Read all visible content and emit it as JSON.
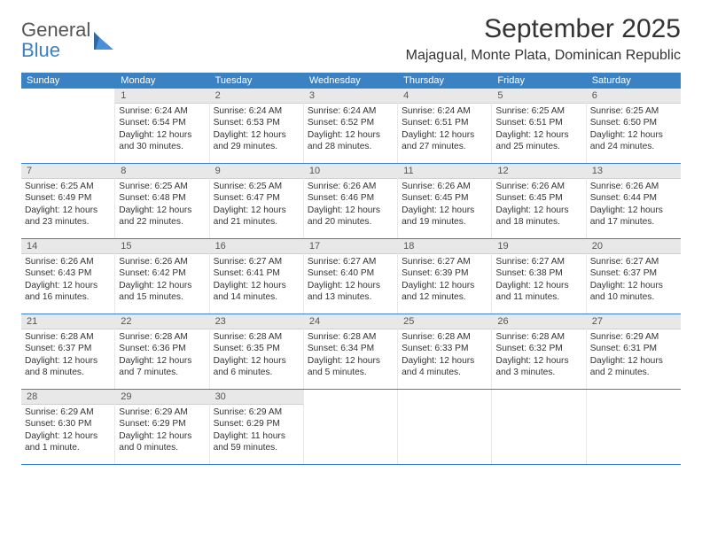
{
  "brand": {
    "name_part1": "General",
    "name_part2": "Blue",
    "shape_color": "#2f6aa8"
  },
  "month_title": "September 2025",
  "location": "Majagual, Monte Plata, Dominican Republic",
  "colors": {
    "header_bg": "#3b82c4",
    "header_text": "#ffffff",
    "daynum_bg": "#e8e8e8",
    "border": "#3b82c4",
    "text": "#333333"
  },
  "weekdays": [
    "Sunday",
    "Monday",
    "Tuesday",
    "Wednesday",
    "Thursday",
    "Friday",
    "Saturday"
  ],
  "weeks": [
    [
      {
        "day": "",
        "lines": []
      },
      {
        "day": "1",
        "lines": [
          "Sunrise: 6:24 AM",
          "Sunset: 6:54 PM",
          "Daylight: 12 hours",
          "and 30 minutes."
        ]
      },
      {
        "day": "2",
        "lines": [
          "Sunrise: 6:24 AM",
          "Sunset: 6:53 PM",
          "Daylight: 12 hours",
          "and 29 minutes."
        ]
      },
      {
        "day": "3",
        "lines": [
          "Sunrise: 6:24 AM",
          "Sunset: 6:52 PM",
          "Daylight: 12 hours",
          "and 28 minutes."
        ]
      },
      {
        "day": "4",
        "lines": [
          "Sunrise: 6:24 AM",
          "Sunset: 6:51 PM",
          "Daylight: 12 hours",
          "and 27 minutes."
        ]
      },
      {
        "day": "5",
        "lines": [
          "Sunrise: 6:25 AM",
          "Sunset: 6:51 PM",
          "Daylight: 12 hours",
          "and 25 minutes."
        ]
      },
      {
        "day": "6",
        "lines": [
          "Sunrise: 6:25 AM",
          "Sunset: 6:50 PM",
          "Daylight: 12 hours",
          "and 24 minutes."
        ]
      }
    ],
    [
      {
        "day": "7",
        "lines": [
          "Sunrise: 6:25 AM",
          "Sunset: 6:49 PM",
          "Daylight: 12 hours",
          "and 23 minutes."
        ]
      },
      {
        "day": "8",
        "lines": [
          "Sunrise: 6:25 AM",
          "Sunset: 6:48 PM",
          "Daylight: 12 hours",
          "and 22 minutes."
        ]
      },
      {
        "day": "9",
        "lines": [
          "Sunrise: 6:25 AM",
          "Sunset: 6:47 PM",
          "Daylight: 12 hours",
          "and 21 minutes."
        ]
      },
      {
        "day": "10",
        "lines": [
          "Sunrise: 6:26 AM",
          "Sunset: 6:46 PM",
          "Daylight: 12 hours",
          "and 20 minutes."
        ]
      },
      {
        "day": "11",
        "lines": [
          "Sunrise: 6:26 AM",
          "Sunset: 6:45 PM",
          "Daylight: 12 hours",
          "and 19 minutes."
        ]
      },
      {
        "day": "12",
        "lines": [
          "Sunrise: 6:26 AM",
          "Sunset: 6:45 PM",
          "Daylight: 12 hours",
          "and 18 minutes."
        ]
      },
      {
        "day": "13",
        "lines": [
          "Sunrise: 6:26 AM",
          "Sunset: 6:44 PM",
          "Daylight: 12 hours",
          "and 17 minutes."
        ]
      }
    ],
    [
      {
        "day": "14",
        "lines": [
          "Sunrise: 6:26 AM",
          "Sunset: 6:43 PM",
          "Daylight: 12 hours",
          "and 16 minutes."
        ]
      },
      {
        "day": "15",
        "lines": [
          "Sunrise: 6:26 AM",
          "Sunset: 6:42 PM",
          "Daylight: 12 hours",
          "and 15 minutes."
        ]
      },
      {
        "day": "16",
        "lines": [
          "Sunrise: 6:27 AM",
          "Sunset: 6:41 PM",
          "Daylight: 12 hours",
          "and 14 minutes."
        ]
      },
      {
        "day": "17",
        "lines": [
          "Sunrise: 6:27 AM",
          "Sunset: 6:40 PM",
          "Daylight: 12 hours",
          "and 13 minutes."
        ]
      },
      {
        "day": "18",
        "lines": [
          "Sunrise: 6:27 AM",
          "Sunset: 6:39 PM",
          "Daylight: 12 hours",
          "and 12 minutes."
        ]
      },
      {
        "day": "19",
        "lines": [
          "Sunrise: 6:27 AM",
          "Sunset: 6:38 PM",
          "Daylight: 12 hours",
          "and 11 minutes."
        ]
      },
      {
        "day": "20",
        "lines": [
          "Sunrise: 6:27 AM",
          "Sunset: 6:37 PM",
          "Daylight: 12 hours",
          "and 10 minutes."
        ]
      }
    ],
    [
      {
        "day": "21",
        "lines": [
          "Sunrise: 6:28 AM",
          "Sunset: 6:37 PM",
          "Daylight: 12 hours",
          "and 8 minutes."
        ]
      },
      {
        "day": "22",
        "lines": [
          "Sunrise: 6:28 AM",
          "Sunset: 6:36 PM",
          "Daylight: 12 hours",
          "and 7 minutes."
        ]
      },
      {
        "day": "23",
        "lines": [
          "Sunrise: 6:28 AM",
          "Sunset: 6:35 PM",
          "Daylight: 12 hours",
          "and 6 minutes."
        ]
      },
      {
        "day": "24",
        "lines": [
          "Sunrise: 6:28 AM",
          "Sunset: 6:34 PM",
          "Daylight: 12 hours",
          "and 5 minutes."
        ]
      },
      {
        "day": "25",
        "lines": [
          "Sunrise: 6:28 AM",
          "Sunset: 6:33 PM",
          "Daylight: 12 hours",
          "and 4 minutes."
        ]
      },
      {
        "day": "26",
        "lines": [
          "Sunrise: 6:28 AM",
          "Sunset: 6:32 PM",
          "Daylight: 12 hours",
          "and 3 minutes."
        ]
      },
      {
        "day": "27",
        "lines": [
          "Sunrise: 6:29 AM",
          "Sunset: 6:31 PM",
          "Daylight: 12 hours",
          "and 2 minutes."
        ]
      }
    ],
    [
      {
        "day": "28",
        "lines": [
          "Sunrise: 6:29 AM",
          "Sunset: 6:30 PM",
          "Daylight: 12 hours",
          "and 1 minute."
        ]
      },
      {
        "day": "29",
        "lines": [
          "Sunrise: 6:29 AM",
          "Sunset: 6:29 PM",
          "Daylight: 12 hours",
          "and 0 minutes."
        ]
      },
      {
        "day": "30",
        "lines": [
          "Sunrise: 6:29 AM",
          "Sunset: 6:29 PM",
          "Daylight: 11 hours",
          "and 59 minutes."
        ]
      },
      {
        "day": "",
        "lines": []
      },
      {
        "day": "",
        "lines": []
      },
      {
        "day": "",
        "lines": []
      },
      {
        "day": "",
        "lines": []
      }
    ]
  ]
}
